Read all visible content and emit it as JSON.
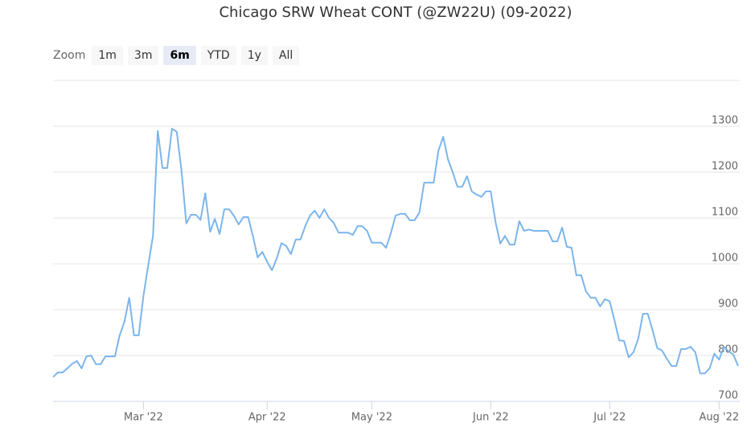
{
  "chart_data": {
    "type": "line",
    "title": "Chicago SRW Wheat CONT (@ZW22U) (09-2022)",
    "range_selector": {
      "label": "Zoom",
      "buttons": [
        "1m",
        "3m",
        "6m",
        "YTD",
        "1y",
        "All"
      ],
      "selected": 2
    },
    "color": "#7cb5ec",
    "grid": true,
    "ylim": [
      700,
      1400
    ],
    "yticks": [
      700,
      800,
      900,
      1000,
      1100,
      1200,
      1300
    ],
    "categories": [
      null,
      null,
      null,
      null,
      null,
      null,
      null,
      null,
      null,
      null,
      null,
      null,
      null,
      null,
      null,
      null,
      null,
      null,
      null,
      "Mar '22",
      null,
      null,
      null,
      null,
      null,
      null,
      null,
      null,
      null,
      null,
      null,
      null,
      null,
      null,
      null,
      null,
      null,
      null,
      null,
      null,
      null,
      null,
      null,
      null,
      null,
      "Apr '22",
      null,
      null,
      null,
      null,
      null,
      null,
      null,
      null,
      null,
      null,
      null,
      null,
      null,
      null,
      null,
      null,
      null,
      null,
      null,
      null,
      null,
      "May '22",
      null,
      null,
      null,
      null,
      null,
      null,
      null,
      null,
      null,
      null,
      null,
      null,
      null,
      null,
      null,
      null,
      null,
      null,
      null,
      null,
      null,
      null,
      null,
      null,
      "Jun '22",
      null,
      null,
      null,
      null,
      null,
      null,
      null,
      null,
      null,
      null,
      null,
      null,
      null,
      null,
      null,
      null,
      null,
      null,
      null,
      null,
      null,
      null,
      null,
      null,
      "Jul '22",
      null,
      null,
      null,
      null,
      null,
      null,
      null,
      null,
      null,
      null,
      null,
      null,
      null,
      null,
      null,
      null,
      null,
      null,
      null,
      null,
      null,
      null,
      "Aug '22",
      null,
      null,
      null,
      null
    ],
    "values": [
      753,
      763,
      763,
      772,
      782,
      788,
      772,
      798,
      800,
      781,
      781,
      798,
      798,
      798,
      844,
      874,
      926,
      844,
      844,
      930,
      996,
      1061,
      1290,
      1209,
      1209,
      1295,
      1288,
      1202,
      1088,
      1107,
      1107,
      1096,
      1154,
      1070,
      1098,
      1065,
      1119,
      1119,
      1105,
      1086,
      1102,
      1102,
      1061,
      1014,
      1026,
      1004,
      986,
      1011,
      1045,
      1039,
      1021,
      1053,
      1053,
      1082,
      1105,
      1116,
      1100,
      1119,
      1100,
      1089,
      1068,
      1068,
      1068,
      1063,
      1082,
      1082,
      1072,
      1046,
      1046,
      1046,
      1035,
      1067,
      1105,
      1109,
      1109,
      1095,
      1095,
      1112,
      1177,
      1177,
      1177,
      1247,
      1277,
      1228,
      1200,
      1168,
      1168,
      1191,
      1158,
      1151,
      1146,
      1158,
      1158,
      1091,
      1044,
      1061,
      1042,
      1042,
      1093,
      1072,
      1075,
      1072,
      1072,
      1072,
      1072,
      1049,
      1049,
      1079,
      1037,
      1035,
      975,
      975,
      940,
      926,
      926,
      907,
      923,
      918,
      877,
      833,
      832,
      796,
      807,
      837,
      891,
      891,
      856,
      816,
      811,
      793,
      777,
      777,
      814,
      814,
      819,
      807,
      761,
      761,
      772,
      804,
      791,
      819,
      809,
      802,
      777
    ]
  }
}
